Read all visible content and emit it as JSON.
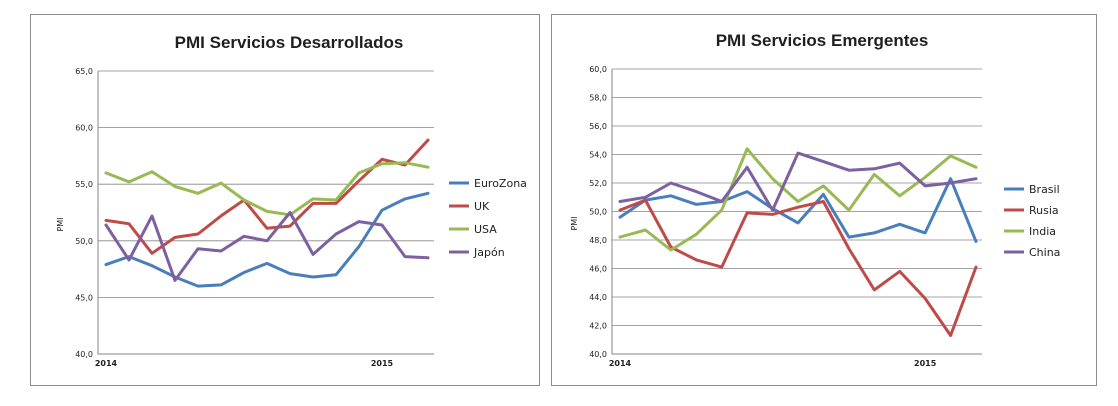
{
  "chart_data": [
    {
      "type": "line",
      "title": "PMI Servicios Desarrollados",
      "ylabel": "PMI",
      "xlabel": "",
      "ylim": [
        40,
        65
      ],
      "yticks": [
        "40,0",
        "45,0",
        "50,0",
        "55,0",
        "60,0",
        "65,0"
      ],
      "xticks": [
        {
          "label": "2014",
          "index": 0
        },
        {
          "label": "2015",
          "index": 12
        }
      ],
      "grid": true,
      "legend": "right",
      "series": [
        {
          "name": "EuroZona",
          "color": "#4a7ebb",
          "values": [
            47.9,
            48.6,
            47.8,
            46.8,
            46.0,
            46.1,
            47.2,
            48.0,
            47.1,
            46.8,
            47.0,
            49.5,
            52.7,
            53.7,
            54.2
          ]
        },
        {
          "name": "UK",
          "color": "#be4b48",
          "values": [
            51.8,
            51.5,
            48.9,
            50.3,
            50.6,
            52.2,
            53.6,
            51.1,
            51.3,
            53.3,
            53.3,
            55.3,
            57.2,
            56.7,
            58.9
          ]
        },
        {
          "name": "USA",
          "color": "#98b954",
          "values": [
            56.0,
            55.2,
            56.1,
            54.8,
            54.2,
            55.1,
            53.6,
            52.6,
            52.3,
            53.7,
            53.6,
            56.0,
            56.8,
            56.9,
            56.5
          ]
        },
        {
          "name": "Japón",
          "color": "#7d60a0",
          "values": [
            51.4,
            48.3,
            52.2,
            46.5,
            49.3,
            49.1,
            50.4,
            50.0,
            52.5,
            48.8,
            50.6,
            51.7,
            51.4,
            48.6,
            48.5
          ]
        }
      ]
    },
    {
      "type": "line",
      "title": "PMI Servicios Emergentes",
      "ylabel": "PMI",
      "xlabel": "",
      "ylim": [
        40,
        60
      ],
      "yticks": [
        "40,0",
        "42,0",
        "44,0",
        "46,0",
        "48,0",
        "50,0",
        "52,0",
        "54,0",
        "56,0",
        "58,0",
        "60,0"
      ],
      "xticks": [
        {
          "label": "2014",
          "index": 0
        },
        {
          "label": "2015",
          "index": 12
        }
      ],
      "grid": true,
      "legend": "right",
      "series": [
        {
          "name": "Brasil",
          "color": "#4a7ebb",
          "values": [
            49.6,
            50.8,
            51.1,
            50.5,
            50.7,
            51.4,
            50.2,
            49.2,
            51.2,
            48.2,
            48.5,
            49.1,
            48.5,
            52.3,
            47.9
          ]
        },
        {
          "name": "Rusia",
          "color": "#be4b48",
          "values": [
            50.1,
            50.8,
            47.5,
            46.6,
            46.1,
            49.9,
            49.8,
            50.3,
            50.7,
            47.4,
            44.5,
            45.8,
            43.9,
            41.3,
            46.1
          ]
        },
        {
          "name": "India",
          "color": "#98b954",
          "values": [
            48.2,
            48.7,
            47.3,
            48.4,
            50.1,
            54.4,
            52.3,
            50.7,
            51.8,
            50.1,
            52.6,
            51.1,
            52.4,
            53.9,
            53.1
          ]
        },
        {
          "name": "China",
          "color": "#7d60a0",
          "values": [
            50.7,
            51.0,
            52.0,
            51.4,
            50.7,
            53.1,
            50.1,
            54.1,
            53.5,
            52.9,
            53.0,
            53.4,
            51.8,
            52.0,
            52.3
          ]
        }
      ]
    }
  ]
}
